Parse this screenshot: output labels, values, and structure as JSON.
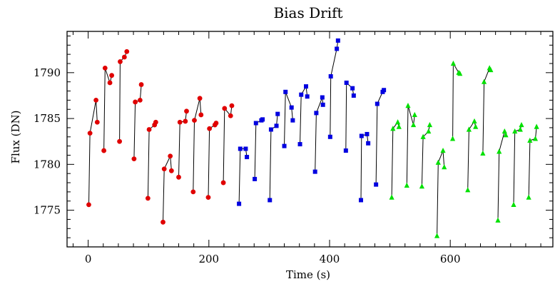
{
  "chart_data": {
    "type": "scatter",
    "title": "Bias Drift",
    "xlabel": "Time (s)",
    "ylabel": "Flux (DN)",
    "xlim": [
      -35,
      770
    ],
    "ylim": [
      1771,
      1794.5
    ],
    "xticks": [
      0,
      200,
      400,
      600
    ],
    "yticks": [
      1775,
      1780,
      1785,
      1790
    ],
    "grid": false,
    "legend": "none",
    "colors": {
      "red": "#e00000",
      "blue": "#0000e0",
      "green": "#00e000",
      "line": "#000000",
      "axis": "#000000"
    },
    "series": [
      {
        "color": "red",
        "marker": "circle",
        "segments": [
          [
            [
              1,
              1775.6
            ],
            [
              3,
              1783.4
            ],
            [
              13,
              1787.0
            ],
            [
              15,
              1784.6
            ]
          ],
          [
            [
              26,
              1781.5
            ],
            [
              28,
              1790.5
            ],
            [
              36,
              1788.9
            ],
            [
              39,
              1789.7
            ]
          ],
          [
            [
              52,
              1782.5
            ],
            [
              53,
              1791.2
            ],
            [
              60,
              1791.7
            ],
            [
              64,
              1792.3
            ]
          ],
          [
            [
              76,
              1780.6
            ],
            [
              78,
              1786.8
            ],
            [
              86,
              1787.0
            ],
            [
              88,
              1788.7
            ]
          ],
          [
            [
              99,
              1776.3
            ],
            [
              101,
              1783.8
            ],
            [
              110,
              1784.3
            ],
            [
              112,
              1784.6
            ]
          ],
          [
            [
              124,
              1773.7
            ],
            [
              126,
              1779.5
            ],
            [
              136,
              1780.9
            ],
            [
              138,
              1779.3
            ]
          ],
          [
            [
              150,
              1778.6
            ],
            [
              152,
              1784.6
            ],
            [
              161,
              1784.7
            ],
            [
              163,
              1785.8
            ]
          ],
          [
            [
              174,
              1777.0
            ],
            [
              176,
              1784.8
            ],
            [
              185,
              1787.2
            ],
            [
              187,
              1785.4
            ]
          ],
          [
            [
              199,
              1776.4
            ],
            [
              201,
              1783.9
            ],
            [
              210,
              1784.3
            ],
            [
              212,
              1784.5
            ]
          ],
          [
            [
              224,
              1778.0
            ],
            [
              226,
              1786.1
            ],
            [
              236,
              1785.3
            ],
            [
              238,
              1786.4
            ]
          ]
        ]
      },
      {
        "color": "blue",
        "marker": "square",
        "segments": [
          [
            [
              250,
              1775.7
            ],
            [
              252,
              1781.7
            ],
            [
              261,
              1781.7
            ],
            [
              263,
              1780.8
            ]
          ],
          [
            [
              276,
              1778.4
            ],
            [
              278,
              1784.5
            ],
            [
              287,
              1784.8
            ],
            [
              289,
              1784.9
            ]
          ],
          [
            [
              301,
              1776.1
            ],
            [
              303,
              1783.8
            ],
            [
              312,
              1784.2
            ],
            [
              314,
              1785.5
            ]
          ],
          [
            [
              325,
              1782.0
            ],
            [
              327,
              1787.9
            ],
            [
              337,
              1786.2
            ],
            [
              339,
              1784.8
            ]
          ],
          [
            [
              351,
              1782.2
            ],
            [
              353,
              1787.6
            ],
            [
              361,
              1788.5
            ],
            [
              363,
              1787.4
            ]
          ],
          [
            [
              376,
              1779.2
            ],
            [
              378,
              1785.6
            ],
            [
              388,
              1787.3
            ],
            [
              389,
              1786.5
            ]
          ],
          [
            [
              401,
              1783.0
            ],
            [
              402,
              1789.6
            ],
            [
              412,
              1792.6
            ],
            [
              414,
              1793.5
            ]
          ],
          [
            [
              427,
              1781.5
            ],
            [
              428,
              1788.9
            ],
            [
              438,
              1788.3
            ],
            [
              440,
              1787.5
            ]
          ],
          [
            [
              452,
              1776.1
            ],
            [
              453,
              1783.1
            ],
            [
              462,
              1783.3
            ],
            [
              464,
              1782.3
            ]
          ],
          [
            [
              477,
              1777.8
            ],
            [
              479,
              1786.6
            ],
            [
              488,
              1787.9
            ],
            [
              490,
              1788.1
            ]
          ]
        ]
      },
      {
        "color": "green",
        "marker": "triangle",
        "segments": [
          [
            [
              503,
              1776.4
            ],
            [
              505,
              1783.9
            ],
            [
              513,
              1784.6
            ],
            [
              515,
              1784.1
            ]
          ],
          [
            [
              528,
              1777.7
            ],
            [
              530,
              1786.4
            ],
            [
              539,
              1784.3
            ],
            [
              541,
              1785.4
            ]
          ],
          [
            [
              553,
              1777.6
            ],
            [
              555,
              1783.0
            ],
            [
              564,
              1783.6
            ],
            [
              566,
              1784.3
            ]
          ],
          [
            [
              578,
              1772.2
            ],
            [
              580,
              1780.2
            ],
            [
              588,
              1781.5
            ],
            [
              590,
              1779.7
            ]
          ],
          [
            [
              604,
              1782.8
            ],
            [
              605,
              1791.0
            ],
            [
              614,
              1790.0
            ],
            [
              616,
              1789.9
            ]
          ],
          [
            [
              629,
              1777.2
            ],
            [
              631,
              1783.8
            ],
            [
              640,
              1784.7
            ],
            [
              642,
              1784.1
            ]
          ],
          [
            [
              654,
              1781.2
            ],
            [
              656,
              1789.0
            ],
            [
              665,
              1790.5
            ],
            [
              667,
              1790.3
            ]
          ],
          [
            [
              679,
              1773.9
            ],
            [
              681,
              1781.4
            ],
            [
              690,
              1783.6
            ],
            [
              692,
              1783.2
            ]
          ],
          [
            [
              705,
              1775.6
            ],
            [
              707,
              1783.6
            ],
            [
              716,
              1783.8
            ],
            [
              718,
              1784.3
            ]
          ],
          [
            [
              730,
              1776.4
            ],
            [
              732,
              1782.6
            ],
            [
              741,
              1782.8
            ],
            [
              743,
              1784.1
            ]
          ]
        ]
      }
    ]
  }
}
